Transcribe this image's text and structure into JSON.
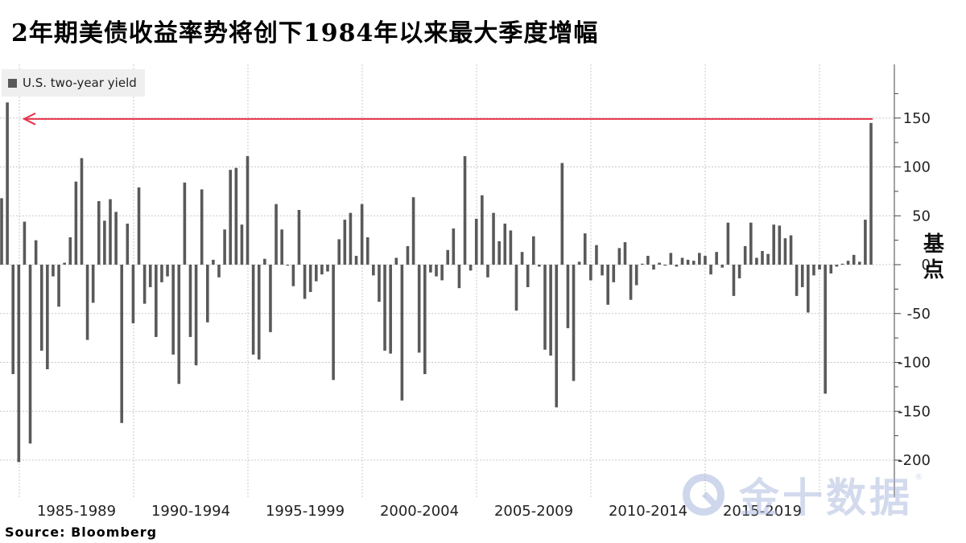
{
  "title": "2年期美债收益率势将创下1984年以来最大季度增幅",
  "source": "Source:  Bloomberg",
  "watermark": {
    "text": "金十数据",
    "mark": "®"
  },
  "unit_label": "基\n点",
  "colors": {
    "bar": "#595959",
    "arrow": "#e8334a",
    "grid": "#c8c8c8"
  },
  "chart_data": {
    "type": "bar",
    "title": "2年期美债收益率势将创下1984年以来最大季度增幅",
    "ylabel": "基点",
    "ylim": [
      -210,
      190
    ],
    "yticks": [
      150,
      100,
      50,
      0,
      -50,
      -100,
      -150,
      -200
    ],
    "grid": true,
    "legend_position": "top-left",
    "x_range": [
      "1984Q1",
      "2022Q1"
    ],
    "period_labels": [
      "1985-1989",
      "1990-1994",
      "1995-1999",
      "2000-2004",
      "2005-2009",
      "2010-2014",
      "2015-2019"
    ],
    "series": [
      {
        "name": "U.S. two-year yield",
        "values": [
          68,
          166,
          -112,
          -202,
          44,
          -183,
          25,
          -88,
          -107,
          -12,
          -43,
          2,
          28,
          85,
          109,
          -77,
          -39,
          65,
          45,
          67,
          54,
          -162,
          42,
          -60,
          79,
          -40,
          -23,
          -74,
          -18,
          -12,
          -92,
          -122,
          84,
          -74,
          -103,
          77,
          -59,
          5,
          -13,
          36,
          97,
          99,
          41,
          111,
          -92,
          -97,
          6,
          -69,
          62,
          36,
          -1,
          -22,
          56,
          -35,
          -28,
          -17,
          -10,
          -7,
          -118,
          26,
          46,
          53,
          9,
          62,
          28,
          -11,
          -38,
          -88,
          -91,
          7,
          -139,
          19,
          69,
          -90,
          -112,
          -8,
          -12,
          -16,
          15,
          37,
          -24,
          111,
          -6,
          47,
          71,
          -13,
          53,
          24,
          42,
          35,
          -47,
          13,
          -23,
          29,
          -2,
          -87,
          -93,
          -146,
          104,
          -65,
          -119,
          3,
          32,
          -16,
          20,
          -11,
          -41,
          -18,
          17,
          23,
          -36,
          -21,
          1,
          9,
          -5,
          2,
          -1,
          12,
          -2,
          7,
          5,
          4,
          12,
          9,
          -10,
          13,
          -3,
          43,
          -32,
          -14,
          19,
          43,
          7,
          14,
          11,
          41,
          40,
          27,
          30,
          -32,
          -23,
          -49,
          -11,
          -5,
          -132,
          -9,
          -2,
          1,
          4,
          10,
          3,
          46,
          145
        ]
      }
    ],
    "annotations": [
      {
        "type": "arrow",
        "y_value": 145,
        "from": "2022Q1",
        "to": "1984Q2",
        "description": "horizontal red arrow marking the 2022Q1 increase back to the 1984 level"
      }
    ]
  }
}
